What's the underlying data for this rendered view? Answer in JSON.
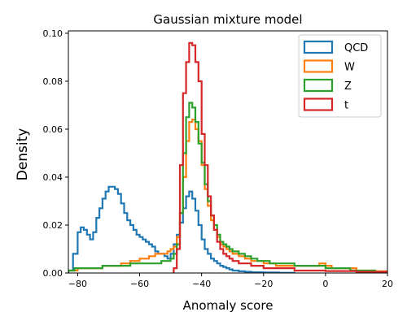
{
  "chart_data": {
    "type": "histogram-step",
    "title": "Gaussian mixture model",
    "xlabel": "Anomaly score",
    "ylabel": "Density",
    "xlim": [
      -83,
      20
    ],
    "ylim": [
      0,
      0.101
    ],
    "xticks": [
      -80,
      -60,
      -40,
      -20,
      0,
      20
    ],
    "yticks": [
      0.0,
      0.02,
      0.04,
      0.06,
      0.08,
      0.1
    ],
    "xtick_labels": [
      "−80",
      "−60",
      "−40",
      "−20",
      "0",
      "20"
    ],
    "ytick_labels": [
      "0.00",
      "0.02",
      "0.04",
      "0.06",
      "0.08",
      "0.10"
    ],
    "legend_position": "top-right",
    "grid": false,
    "series": [
      {
        "name": "QCD",
        "color": "#1f77b4",
        "points": [
          [
            -83,
            0.001
          ],
          [
            -81.5,
            0.008
          ],
          [
            -80,
            0.017
          ],
          [
            -79,
            0.019
          ],
          [
            -78,
            0.018
          ],
          [
            -77,
            0.016
          ],
          [
            -76,
            0.014
          ],
          [
            -75,
            0.017
          ],
          [
            -74,
            0.023
          ],
          [
            -73,
            0.027
          ],
          [
            -72,
            0.031
          ],
          [
            -71,
            0.034
          ],
          [
            -70,
            0.036
          ],
          [
            -68,
            0.035
          ],
          [
            -67,
            0.033
          ],
          [
            -66,
            0.029
          ],
          [
            -65,
            0.025
          ],
          [
            -64,
            0.022
          ],
          [
            -63,
            0.02
          ],
          [
            -62,
            0.018
          ],
          [
            -61,
            0.016
          ],
          [
            -60,
            0.015
          ],
          [
            -59,
            0.014
          ],
          [
            -58,
            0.013
          ],
          [
            -57,
            0.012
          ],
          [
            -56,
            0.011
          ],
          [
            -55,
            0.009
          ],
          [
            -54,
            0.008
          ],
          [
            -53,
            0.008
          ],
          [
            -52,
            0.007
          ],
          [
            -51,
            0.006
          ],
          [
            -50,
            0.008
          ],
          [
            -49,
            0.012
          ],
          [
            -48,
            0.016
          ],
          [
            -47,
            0.021
          ],
          [
            -46,
            0.027
          ],
          [
            -45,
            0.032
          ],
          [
            -44,
            0.034
          ],
          [
            -43,
            0.031
          ],
          [
            -42,
            0.026
          ],
          [
            -41,
            0.02
          ],
          [
            -40,
            0.014
          ],
          [
            -39,
            0.01
          ],
          [
            -38,
            0.008
          ],
          [
            -37,
            0.006
          ],
          [
            -36,
            0.005
          ],
          [
            -35,
            0.004
          ],
          [
            -34,
            0.003
          ],
          [
            -33,
            0.0025
          ],
          [
            -32,
            0.002
          ],
          [
            -31,
            0.0015
          ],
          [
            -30,
            0.001
          ],
          [
            -28,
            0.0007
          ],
          [
            -26,
            0.0005
          ],
          [
            -24,
            0.0003
          ],
          [
            -20,
            0.0002
          ],
          [
            -15,
            0.0001
          ]
        ],
        "end_x": -10
      },
      {
        "name": "W",
        "color": "#ff7f0e",
        "points": [
          [
            -83,
            0.001
          ],
          [
            -80,
            0.002
          ],
          [
            -75,
            0.002
          ],
          [
            -72,
            0.003
          ],
          [
            -70,
            0.003
          ],
          [
            -66,
            0.004
          ],
          [
            -63,
            0.005
          ],
          [
            -60,
            0.006
          ],
          [
            -57,
            0.007
          ],
          [
            -55,
            0.008
          ],
          [
            -53,
            0.008
          ],
          [
            -51,
            0.009
          ],
          [
            -50,
            0.01
          ],
          [
            -49,
            0.011
          ],
          [
            -48,
            0.015
          ],
          [
            -47,
            0.025
          ],
          [
            -46,
            0.04
          ],
          [
            -45,
            0.055
          ],
          [
            -44,
            0.063
          ],
          [
            -43,
            0.064
          ],
          [
            -42,
            0.06
          ],
          [
            -41,
            0.055
          ],
          [
            -40,
            0.045
          ],
          [
            -39,
            0.035
          ],
          [
            -38,
            0.028
          ],
          [
            -37,
            0.022
          ],
          [
            -36,
            0.018
          ],
          [
            -35,
            0.015
          ],
          [
            -34,
            0.012
          ],
          [
            -33,
            0.011
          ],
          [
            -32,
            0.01
          ],
          [
            -31,
            0.009
          ],
          [
            -30,
            0.008
          ],
          [
            -28,
            0.007
          ],
          [
            -26,
            0.006
          ],
          [
            -24,
            0.005
          ],
          [
            -22,
            0.005
          ],
          [
            -20,
            0.004
          ],
          [
            -18,
            0.004
          ],
          [
            -16,
            0.003
          ],
          [
            -14,
            0.003
          ],
          [
            -10,
            0.003
          ],
          [
            -5,
            0.003
          ],
          [
            -2,
            0.004
          ],
          [
            0,
            0.003
          ],
          [
            2,
            0.002
          ],
          [
            5,
            0.002
          ],
          [
            8,
            0.002
          ],
          [
            10,
            0.001
          ],
          [
            13,
            0.001
          ],
          [
            16,
            0.0007
          ]
        ],
        "end_x": 20
      },
      {
        "name": "Z",
        "color": "#2ca02c",
        "points": [
          [
            -83,
            0.001
          ],
          [
            -81,
            0.002
          ],
          [
            -78,
            0.002
          ],
          [
            -74,
            0.002
          ],
          [
            -72,
            0.003
          ],
          [
            -69,
            0.003
          ],
          [
            -66,
            0.003
          ],
          [
            -63,
            0.004
          ],
          [
            -60,
            0.004
          ],
          [
            -57,
            0.004
          ],
          [
            -55,
            0.004
          ],
          [
            -53,
            0.005
          ],
          [
            -51,
            0.005
          ],
          [
            -50,
            0.006
          ],
          [
            -49,
            0.008
          ],
          [
            -48,
            0.012
          ],
          [
            -47,
            0.025
          ],
          [
            -46,
            0.05
          ],
          [
            -45,
            0.065
          ],
          [
            -44,
            0.071
          ],
          [
            -43,
            0.069
          ],
          [
            -42,
            0.063
          ],
          [
            -41,
            0.054
          ],
          [
            -40,
            0.046
          ],
          [
            -39,
            0.037
          ],
          [
            -38,
            0.03
          ],
          [
            -37,
            0.024
          ],
          [
            -36,
            0.02
          ],
          [
            -35,
            0.016
          ],
          [
            -34,
            0.013
          ],
          [
            -33,
            0.012
          ],
          [
            -32,
            0.011
          ],
          [
            -31,
            0.01
          ],
          [
            -30,
            0.009
          ],
          [
            -28,
            0.008
          ],
          [
            -26,
            0.007
          ],
          [
            -24,
            0.006
          ],
          [
            -22,
            0.005
          ],
          [
            -20,
            0.005
          ],
          [
            -18,
            0.004
          ],
          [
            -16,
            0.004
          ],
          [
            -14,
            0.004
          ],
          [
            -10,
            0.003
          ],
          [
            -5,
            0.003
          ],
          [
            0,
            0.002
          ],
          [
            4,
            0.002
          ],
          [
            8,
            0.001
          ],
          [
            12,
            0.001
          ],
          [
            16,
            0.0005
          ]
        ],
        "end_x": 20
      },
      {
        "name": "t",
        "color": "#d62728",
        "points": [
          [
            -49,
            0.002
          ],
          [
            -48,
            0.01
          ],
          [
            -47,
            0.045
          ],
          [
            -46,
            0.075
          ],
          [
            -45,
            0.088
          ],
          [
            -44,
            0.096
          ],
          [
            -43,
            0.095
          ],
          [
            -42,
            0.088
          ],
          [
            -41,
            0.08
          ],
          [
            -40,
            0.058
          ],
          [
            -39,
            0.045
          ],
          [
            -38,
            0.032
          ],
          [
            -37,
            0.024
          ],
          [
            -36,
            0.018
          ],
          [
            -35,
            0.013
          ],
          [
            -34,
            0.01
          ],
          [
            -33,
            0.008
          ],
          [
            -32,
            0.007
          ],
          [
            -31,
            0.006
          ],
          [
            -30,
            0.005
          ],
          [
            -28,
            0.004
          ],
          [
            -26,
            0.004
          ],
          [
            -24,
            0.003
          ],
          [
            -22,
            0.003
          ],
          [
            -20,
            0.002
          ],
          [
            -15,
            0.002
          ],
          [
            -10,
            0.001
          ],
          [
            -5,
            0.001
          ],
          [
            0,
            0.0008
          ],
          [
            10,
            0.0005
          ]
        ],
        "end_x": 20
      }
    ]
  }
}
